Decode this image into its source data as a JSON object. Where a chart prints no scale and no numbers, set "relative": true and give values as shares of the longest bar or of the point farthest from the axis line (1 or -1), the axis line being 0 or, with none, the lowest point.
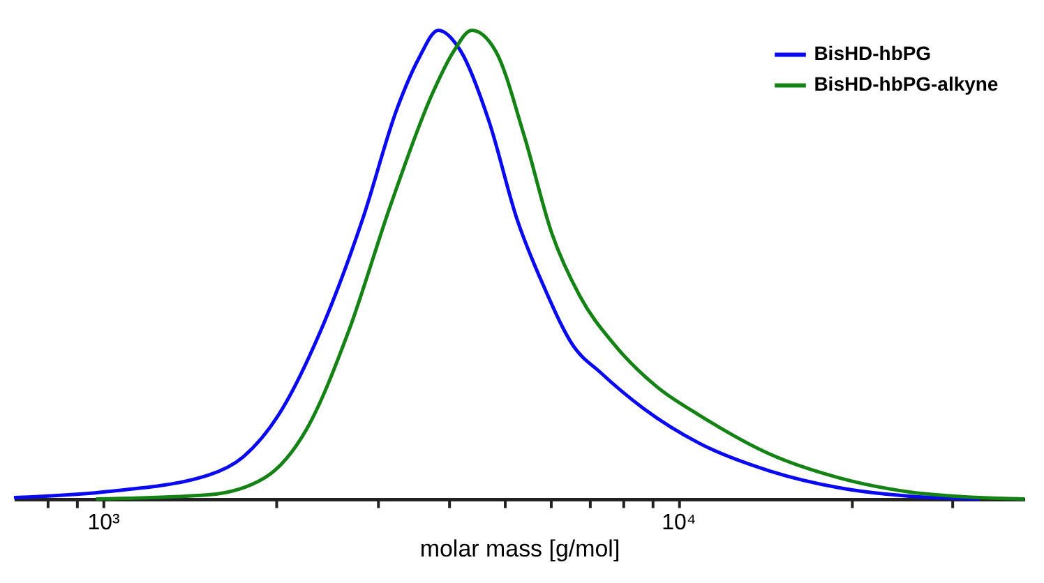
{
  "chart_data": {
    "type": "line",
    "xlabel": "molar mass [g/mol]",
    "relative": true,
    "log": "x",
    "legend": "top right",
    "grid": false,
    "marker": "none",
    "line_style": "solid",
    "xlim": [
      700,
      40000
    ],
    "xticks": [
      {
        "value": 800,
        "label": null
      },
      {
        "value": 900,
        "label": null
      },
      {
        "value": 1000,
        "label": "10³"
      },
      {
        "value": 2000,
        "label": null
      },
      {
        "value": 3000,
        "label": null
      },
      {
        "value": 4000,
        "label": null
      },
      {
        "value": 5000,
        "label": null
      },
      {
        "value": 6000,
        "label": null
      },
      {
        "value": 7000,
        "label": null
      },
      {
        "value": 8000,
        "label": null
      },
      {
        "value": 9000,
        "label": null
      },
      {
        "value": 10000,
        "label": "10⁴"
      },
      {
        "value": 20000,
        "label": null
      },
      {
        "value": 30000,
        "label": null
      }
    ],
    "series": [
      {
        "name": "BisHD-hbPG",
        "color": "#0a0af0",
        "x": [
          700,
          1000,
          1524,
          1753,
          2018,
          2388,
          2827,
          3252,
          3540,
          3828,
          4190,
          4688,
          5245,
          5866,
          6561,
          7340,
          8687,
          10880,
          14420,
          19070,
          25240,
          33440
        ],
        "values": [
          0.003,
          0.015,
          0.051,
          0.09,
          0.179,
          0.358,
          0.597,
          0.836,
          0.94,
          1,
          0.955,
          0.806,
          0.597,
          0.448,
          0.328,
          0.269,
          0.194,
          0.119,
          0.06,
          0.024,
          0.006,
          0
        ]
      },
      {
        "name": "BisHD-hbPG-alkyne",
        "color": "#148214",
        "x": [
          972,
          1524,
          1908,
          2259,
          2673,
          3162,
          3741,
          4070,
          4378,
          4819,
          5395,
          6029,
          6745,
          7762,
          9190,
          10880,
          14420,
          19070,
          25240,
          33440,
          40000
        ],
        "values": [
          0,
          0.009,
          0.045,
          0.149,
          0.358,
          0.627,
          0.866,
          0.955,
          1,
          0.955,
          0.776,
          0.567,
          0.433,
          0.328,
          0.239,
          0.179,
          0.096,
          0.045,
          0.015,
          0.003,
          0
        ]
      }
    ]
  }
}
